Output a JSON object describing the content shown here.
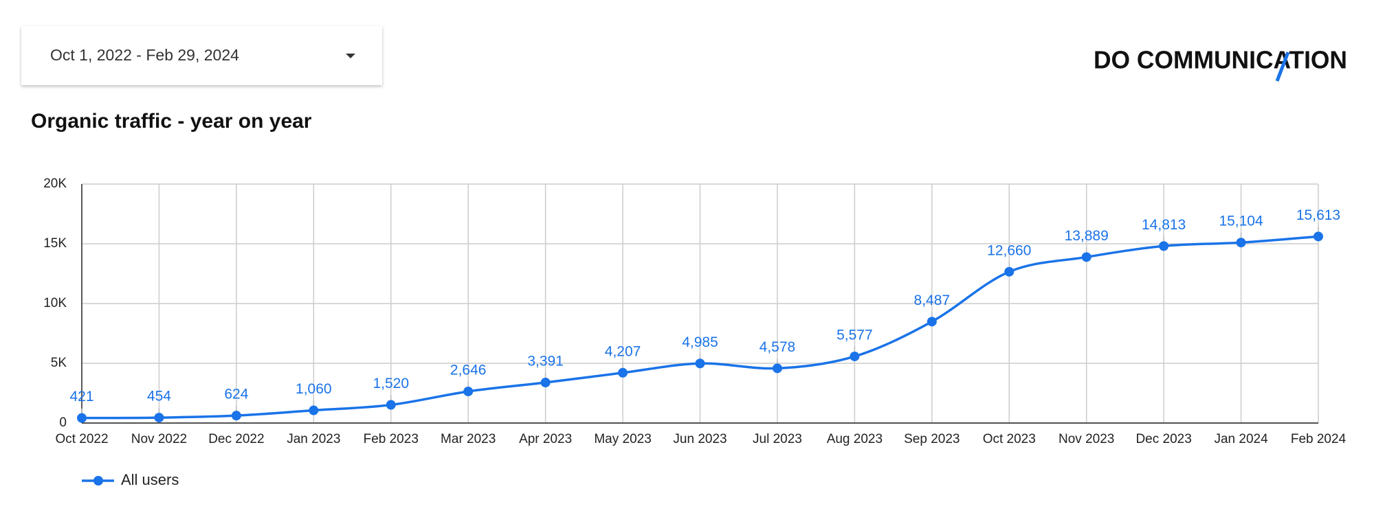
{
  "date_range": "Oct 1, 2022 - Feb 29, 2024",
  "logo": "DO COMMUNICATION",
  "chart_data": {
    "type": "line",
    "title": "Organic traffic - year on year",
    "categories": [
      "Oct 2022",
      "Nov 2022",
      "Dec 2022",
      "Jan 2023",
      "Feb 2023",
      "Mar 2023",
      "Apr 2023",
      "May 2023",
      "Jun 2023",
      "Jul 2023",
      "Aug 2023",
      "Sep 2023",
      "Oct 2023",
      "Nov 2023",
      "Dec 2023",
      "Jan 2024",
      "Feb 2024"
    ],
    "series": [
      {
        "name": "All users",
        "color": "#1a73e8",
        "values": [
          421,
          454,
          624,
          1060,
          1520,
          2646,
          3391,
          4207,
          4985,
          4578,
          5577,
          8487,
          12660,
          13889,
          14813,
          15104,
          15613
        ],
        "value_labels": [
          "421",
          "454",
          "624",
          "1,060",
          "1,520",
          "2,646",
          "3,391",
          "4,207",
          "4,985",
          "4,578",
          "5,577",
          "8,487",
          "12,660",
          "13,889",
          "14,813",
          "15,104",
          "15,613"
        ]
      }
    ],
    "ylim": [
      0,
      20000
    ],
    "yticks": [
      0,
      {
        "value": 5000,
        "label": "5K"
      },
      {
        "value": 10000,
        "label": "10K"
      },
      {
        "value": 15000,
        "label": "15K"
      },
      {
        "value": 20000,
        "label": "20K"
      }
    ],
    "grid": true,
    "legend": "bottom-left"
  }
}
